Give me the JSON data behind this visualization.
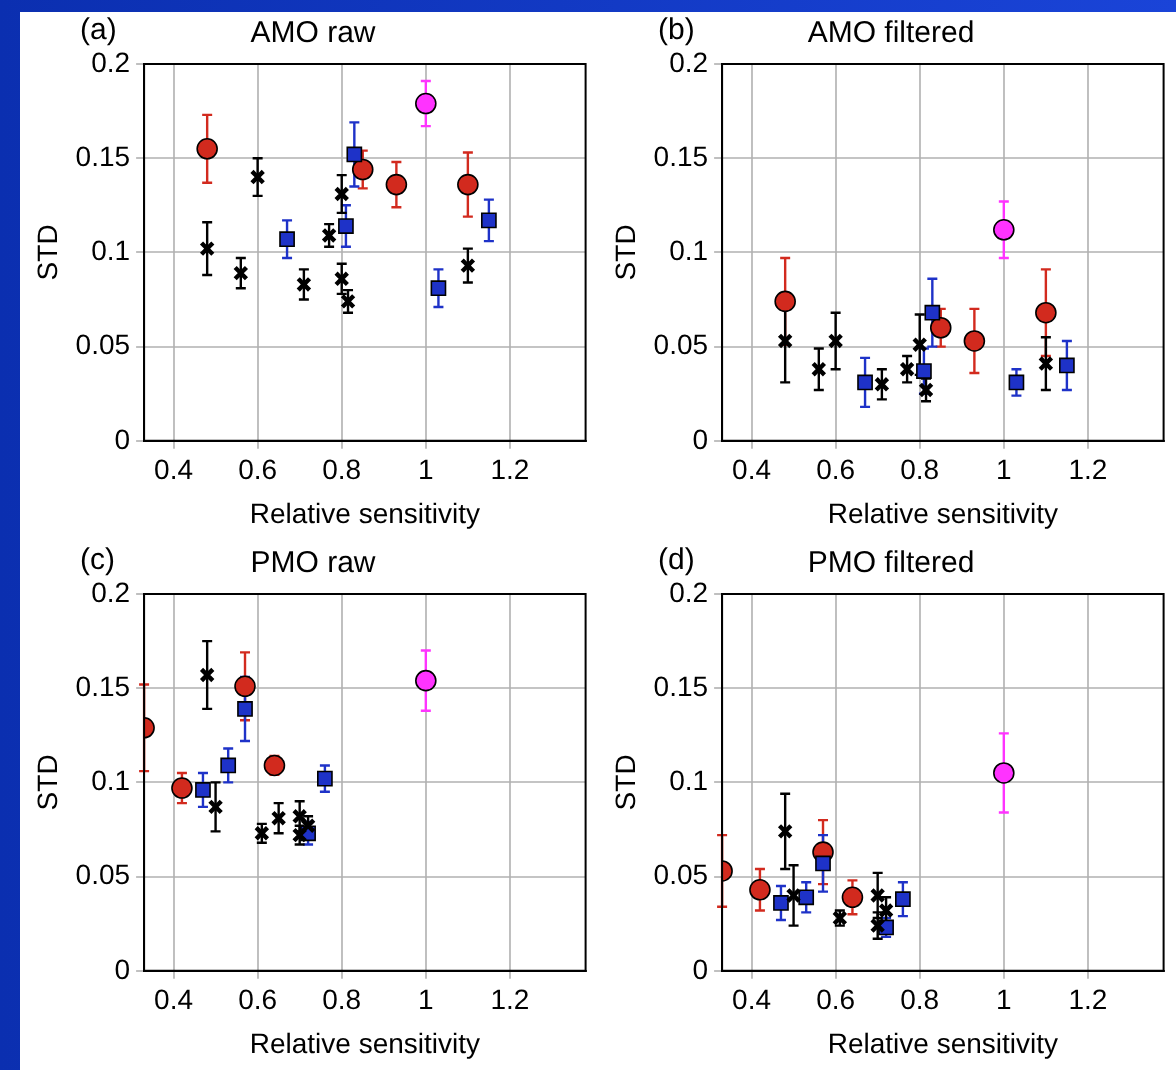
{
  "chart_data": [
    {
      "type": "scatter",
      "title": "AMO raw",
      "annotations": [
        "(a)"
      ],
      "xlabel": "Relative sensitivity",
      "ylabel": "STD",
      "xlim": [
        0.33,
        1.38
      ],
      "ylim": [
        0,
        0.2
      ],
      "xticks": [
        0.4,
        0.6,
        0.8,
        1,
        1.2
      ],
      "yticks": [
        0,
        0.05,
        0.1,
        0.15,
        0.2
      ],
      "grid": true,
      "legend": false,
      "series": [
        {
          "color": "#d22a1e",
          "marker": "circle",
          "x": [
            0.48,
            0.85,
            0.93,
            1.1
          ],
          "values": [
            0.155,
            0.144,
            0.136,
            0.136
          ],
          "errors": [
            0.018,
            0.01,
            0.012,
            0.017
          ]
        },
        {
          "color": "#1e32c8",
          "marker": "square",
          "x": [
            0.67,
            0.81,
            0.83,
            1.03,
            1.15
          ],
          "values": [
            0.107,
            0.114,
            0.152,
            0.081,
            0.117
          ],
          "errors": [
            0.01,
            0.011,
            0.017,
            0.01,
            0.011
          ]
        },
        {
          "color": "#000000",
          "marker": "cross",
          "x": [
            0.48,
            0.56,
            0.6,
            0.71,
            0.77,
            0.8,
            0.8,
            0.815,
            1.1
          ],
          "values": [
            0.102,
            0.089,
            0.14,
            0.083,
            0.109,
            0.131,
            0.086,
            0.074,
            0.093
          ],
          "errors": [
            0.014,
            0.008,
            0.01,
            0.008,
            0.006,
            0.01,
            0.008,
            0.006,
            0.009
          ]
        },
        {
          "color": "#ff33ff",
          "marker": "circle",
          "x": [
            1.0
          ],
          "values": [
            0.179
          ],
          "errors": [
            0.012
          ]
        }
      ]
    },
    {
      "type": "scatter",
      "title": "AMO filtered",
      "annotations": [
        "(b)"
      ],
      "xlabel": "Relative sensitivity",
      "ylabel": "STD",
      "xlim": [
        0.33,
        1.38
      ],
      "ylim": [
        0,
        0.2
      ],
      "xticks": [
        0.4,
        0.6,
        0.8,
        1,
        1.2
      ],
      "yticks": [
        0,
        0.05,
        0.1,
        0.15,
        0.2
      ],
      "grid": true,
      "legend": false,
      "series": [
        {
          "color": "#d22a1e",
          "marker": "circle",
          "x": [
            0.48,
            0.85,
            0.93,
            1.1
          ],
          "values": [
            0.074,
            0.06,
            0.053,
            0.068
          ],
          "errors": [
            0.023,
            0.01,
            0.017,
            0.023
          ]
        },
        {
          "color": "#1e32c8",
          "marker": "square",
          "x": [
            0.67,
            0.81,
            0.83,
            1.03,
            1.15
          ],
          "values": [
            0.031,
            0.037,
            0.068,
            0.031,
            0.04
          ],
          "errors": [
            0.013,
            0.012,
            0.018,
            0.007,
            0.013
          ]
        },
        {
          "color": "#000000",
          "marker": "cross",
          "x": [
            0.48,
            0.56,
            0.6,
            0.71,
            0.77,
            0.8,
            0.815,
            1.1
          ],
          "values": [
            0.053,
            0.038,
            0.053,
            0.03,
            0.038,
            0.051,
            0.027,
            0.041
          ],
          "errors": [
            0.022,
            0.011,
            0.015,
            0.008,
            0.007,
            0.016,
            0.006,
            0.014
          ]
        },
        {
          "color": "#ff33ff",
          "marker": "circle",
          "x": [
            1.0
          ],
          "values": [
            0.112
          ],
          "errors": [
            0.015
          ]
        }
      ]
    },
    {
      "type": "scatter",
      "title": "PMO raw",
      "annotations": [
        "(c)"
      ],
      "xlabel": "Relative sensitivity",
      "ylabel": "STD",
      "xlim": [
        0.33,
        1.38
      ],
      "ylim": [
        0,
        0.2
      ],
      "xticks": [
        0.4,
        0.6,
        0.8,
        1,
        1.2
      ],
      "yticks": [
        0,
        0.05,
        0.1,
        0.15,
        0.2
      ],
      "grid": true,
      "legend": false,
      "series": [
        {
          "color": "#d22a1e",
          "marker": "circle",
          "x": [
            0.33,
            0.42,
            0.57,
            0.64
          ],
          "values": [
            0.129,
            0.097,
            0.151,
            0.109
          ],
          "errors": [
            0.023,
            0.008,
            0.018,
            0.005
          ]
        },
        {
          "color": "#1e32c8",
          "marker": "square",
          "x": [
            0.47,
            0.53,
            0.57,
            0.72,
            0.76
          ],
          "values": [
            0.096,
            0.109,
            0.139,
            0.073,
            0.102
          ],
          "errors": [
            0.009,
            0.009,
            0.017,
            0.006,
            0.007
          ]
        },
        {
          "color": "#000000",
          "marker": "cross",
          "x": [
            0.48,
            0.5,
            0.61,
            0.65,
            0.7,
            0.7,
            0.72
          ],
          "values": [
            0.157,
            0.087,
            0.073,
            0.081,
            0.082,
            0.072,
            0.077
          ],
          "errors": [
            0.018,
            0.013,
            0.005,
            0.008,
            0.008,
            0.005,
            0.005
          ]
        },
        {
          "color": "#ff33ff",
          "marker": "circle",
          "x": [
            1.0
          ],
          "values": [
            0.154
          ],
          "errors": [
            0.016
          ]
        }
      ]
    },
    {
      "type": "scatter",
      "title": "PMO filtered",
      "annotations": [
        "(d)"
      ],
      "xlabel": "Relative sensitivity",
      "ylabel": "STD",
      "xlim": [
        0.33,
        1.38
      ],
      "ylim": [
        0,
        0.2
      ],
      "xticks": [
        0.4,
        0.6,
        0.8,
        1,
        1.2
      ],
      "yticks": [
        0,
        0.05,
        0.1,
        0.15,
        0.2
      ],
      "grid": true,
      "legend": false,
      "series": [
        {
          "color": "#d22a1e",
          "marker": "circle",
          "x": [
            0.33,
            0.42,
            0.57,
            0.64
          ],
          "values": [
            0.053,
            0.043,
            0.063,
            0.039
          ],
          "errors": [
            0.019,
            0.011,
            0.017,
            0.009
          ]
        },
        {
          "color": "#1e32c8",
          "marker": "square",
          "x": [
            0.47,
            0.53,
            0.57,
            0.72,
            0.76
          ],
          "values": [
            0.036,
            0.039,
            0.057,
            0.023,
            0.038
          ],
          "errors": [
            0.009,
            0.008,
            0.015,
            0.005,
            0.009
          ]
        },
        {
          "color": "#000000",
          "marker": "cross",
          "x": [
            0.48,
            0.5,
            0.61,
            0.7,
            0.7,
            0.72
          ],
          "values": [
            0.074,
            0.04,
            0.028,
            0.04,
            0.024,
            0.032
          ],
          "errors": [
            0.02,
            0.016,
            0.004,
            0.012,
            0.007,
            0.007
          ]
        },
        {
          "color": "#ff33ff",
          "marker": "circle",
          "x": [
            1.0
          ],
          "values": [
            0.105
          ],
          "errors": [
            0.021
          ]
        }
      ]
    }
  ]
}
